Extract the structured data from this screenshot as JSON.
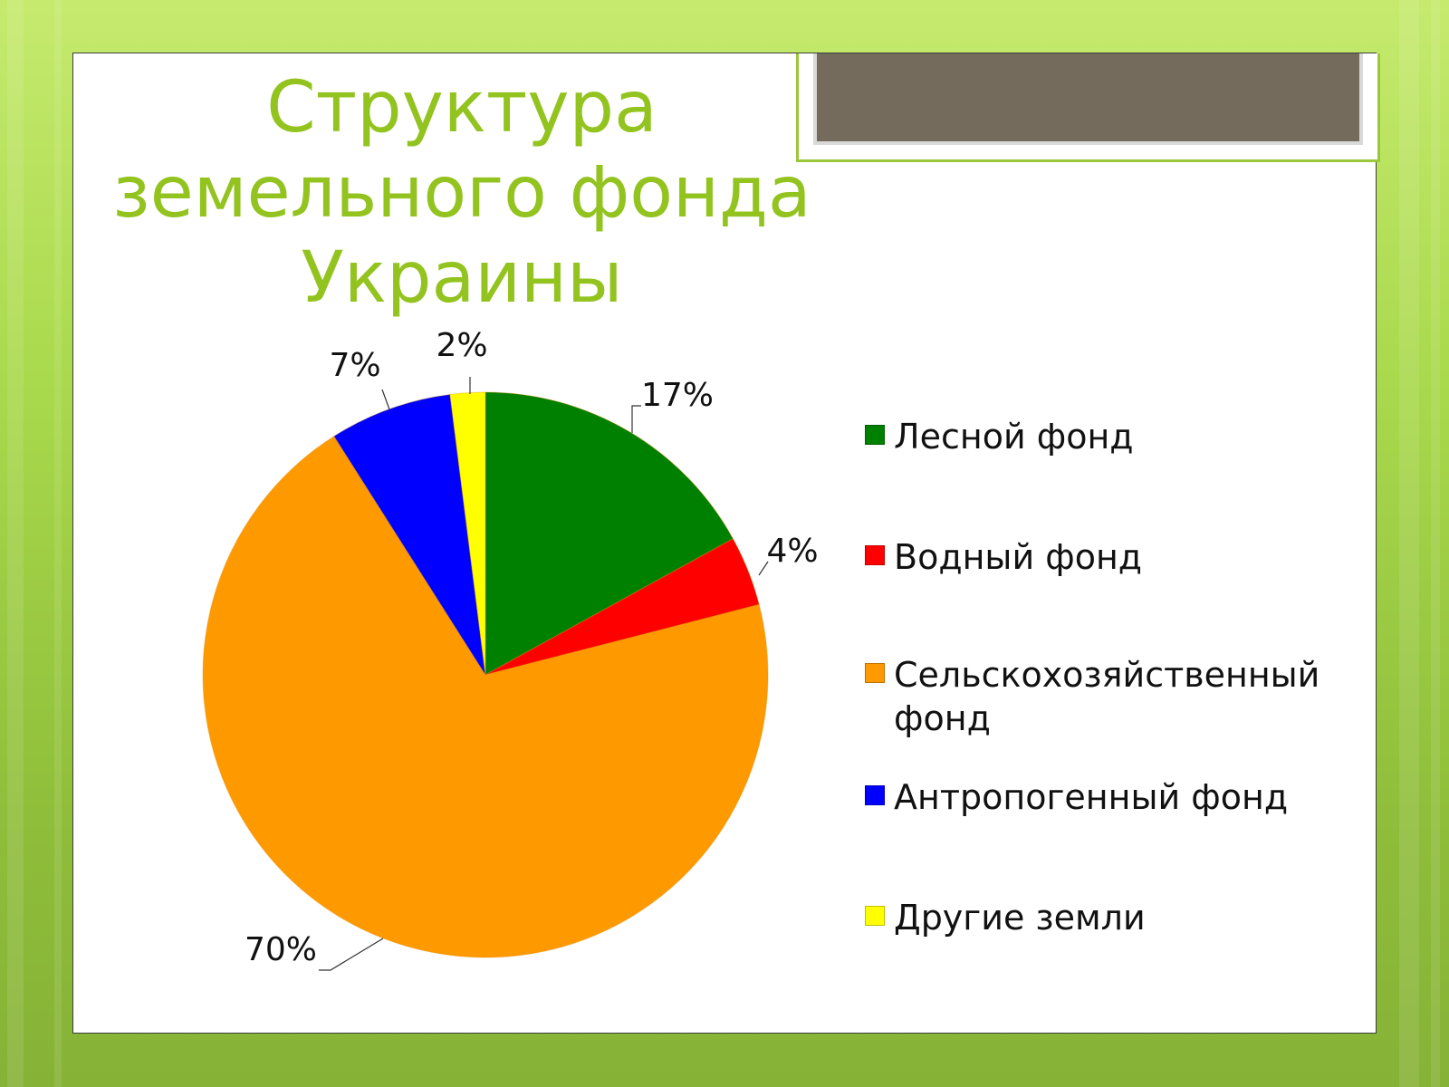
{
  "slide": {
    "title_lines": [
      "Структура",
      "земельного фонда",
      "Украины"
    ]
  },
  "colors": {
    "title": "#93c31f",
    "accent_frame": "#9bc83a",
    "title_box_fill": "#756b5c"
  },
  "chart_data": {
    "type": "pie",
    "title": "",
    "start_angle_deg": 0,
    "direction": "clockwise",
    "slices": [
      {
        "label": "Лесной фонд",
        "value": 17,
        "display": "17%",
        "color": "#008000"
      },
      {
        "label": "Водный фонд",
        "value": 4,
        "display": "4%",
        "color": "#ff0000"
      },
      {
        "label": "Сельскохозяйственный фонд",
        "value": 70,
        "display": "70%",
        "color": "#ff9900"
      },
      {
        "label": "Антропогенный фонд",
        "value": 7,
        "display": "7%",
        "color": "#0000ff"
      },
      {
        "label": "Другие земли",
        "value": 2,
        "display": "2%",
        "color": "#ffff00"
      }
    ],
    "legend": {
      "position": "right",
      "items": [
        {
          "label_lines": [
            "Лесной фонд"
          ],
          "color": "#008000"
        },
        {
          "label_lines": [
            "Водный фонд"
          ],
          "color": "#ff0000"
        },
        {
          "label_lines": [
            "Сельскохозяйственный",
            "фонд"
          ],
          "color": "#ff9900"
        },
        {
          "label_lines": [
            "Антропогенный фонд"
          ],
          "color": "#0000ff"
        },
        {
          "label_lines": [
            "Другие земли"
          ],
          "color": "#ffff00"
        }
      ]
    }
  }
}
